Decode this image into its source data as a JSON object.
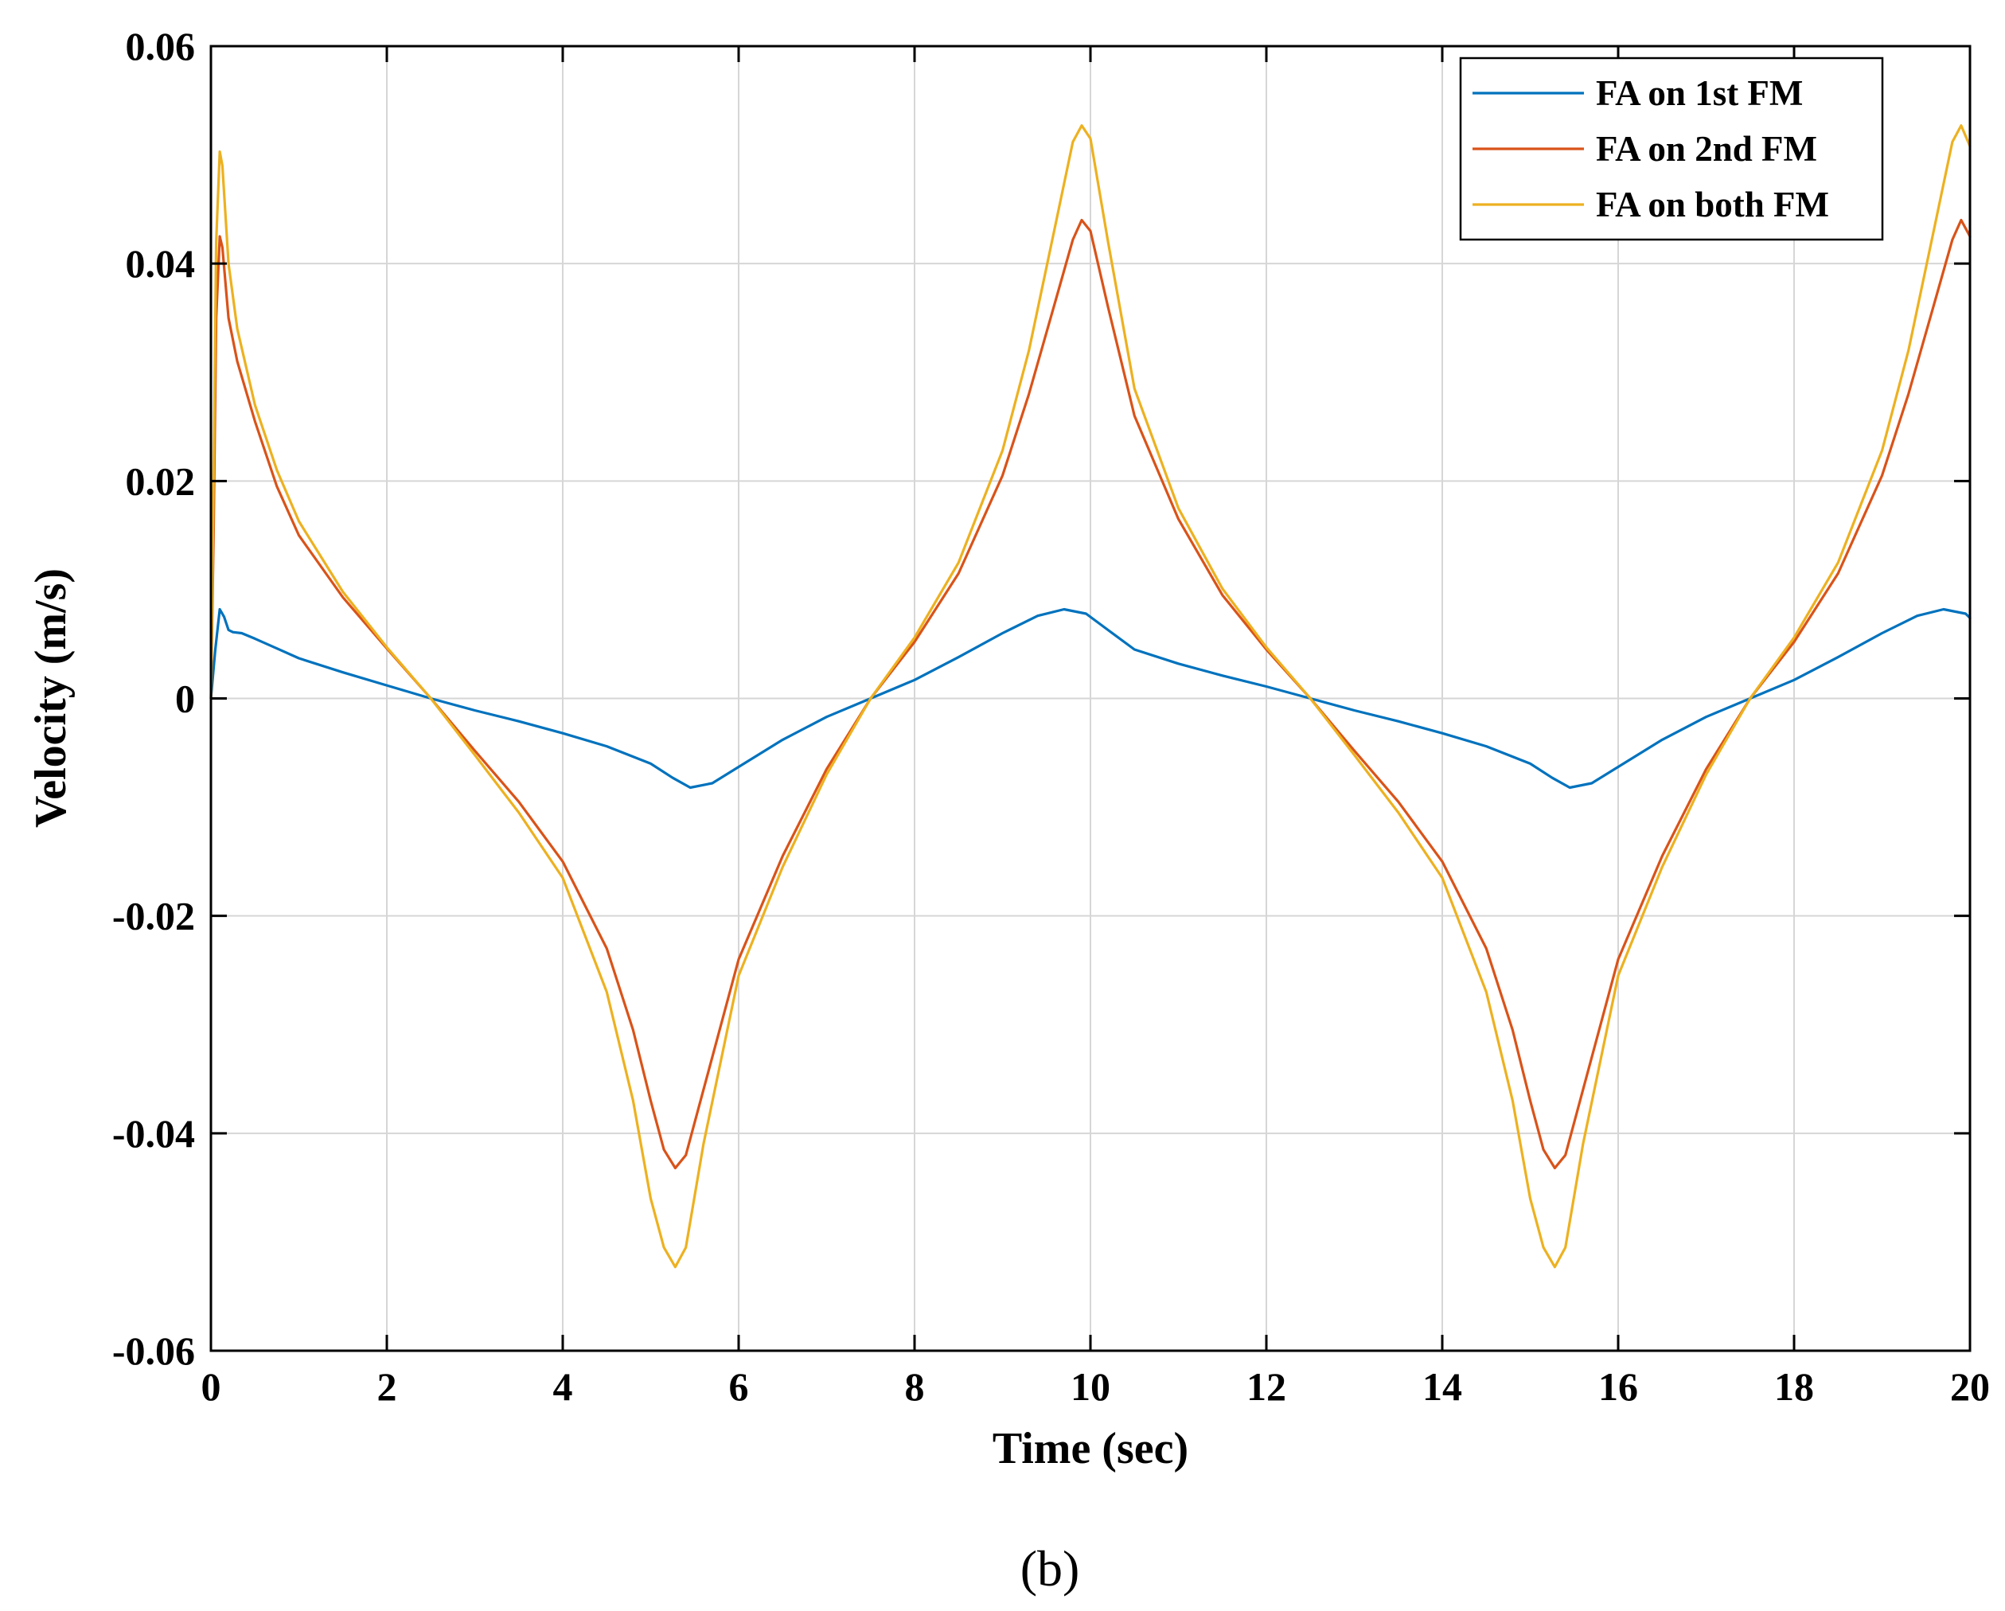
{
  "chart_data": {
    "type": "line",
    "title": "",
    "xlabel": "Time (sec)",
    "ylabel": "Velocity (m/s)",
    "caption": "(b)",
    "xlim": [
      0,
      20
    ],
    "ylim": [
      -0.06,
      0.06
    ],
    "xticks": [
      0,
      2,
      4,
      6,
      8,
      10,
      12,
      14,
      16,
      18,
      20
    ],
    "yticks": [
      -0.06,
      -0.04,
      -0.02,
      0,
      0.02,
      0.04,
      0.06
    ],
    "xtick_labels": [
      "0",
      "2",
      "4",
      "6",
      "8",
      "10",
      "12",
      "14",
      "16",
      "18",
      "20"
    ],
    "ytick_labels": [
      "-0.06",
      "-0.04",
      "-0.02",
      "0",
      "0.02",
      "0.04",
      "0.06"
    ],
    "grid": true,
    "legend_position": "top-right",
    "series": [
      {
        "name": "FA on 1st FM",
        "color": "#0072BD",
        "x": [
          0,
          0.05,
          0.1,
          0.15,
          0.2,
          0.25,
          0.35,
          0.5,
          0.75,
          1,
          1.5,
          2,
          2.5,
          3,
          3.5,
          4,
          4.5,
          5,
          5.25,
          5.45,
          5.7,
          6,
          6.5,
          7,
          7.5,
          8,
          8.5,
          9,
          9.4,
          9.7,
          9.95,
          10.2,
          10.5,
          11,
          11.5,
          12,
          12.5,
          13,
          13.5,
          14,
          14.5,
          15,
          15.25,
          15.45,
          15.7,
          16,
          16.5,
          17,
          17.5,
          18,
          18.5,
          19,
          19.4,
          19.7,
          19.95,
          20
        ],
        "y": [
          0,
          0.0045,
          0.0082,
          0.0075,
          0.0063,
          0.0061,
          0.006,
          0.0055,
          0.0046,
          0.0037,
          0.0024,
          0.0012,
          0.0,
          -0.0011,
          -0.0021,
          -0.0032,
          -0.0044,
          -0.006,
          -0.0073,
          -0.0082,
          -0.0078,
          -0.0063,
          -0.0038,
          -0.0017,
          0.0,
          0.0017,
          0.0038,
          0.006,
          0.0076,
          0.0082,
          0.0078,
          0.0063,
          0.0045,
          0.0032,
          0.0021,
          0.0011,
          0.0,
          -0.0011,
          -0.0021,
          -0.0032,
          -0.0044,
          -0.006,
          -0.0073,
          -0.0082,
          -0.0078,
          -0.0063,
          -0.0038,
          -0.0017,
          0.0,
          0.0017,
          0.0038,
          0.006,
          0.0076,
          0.0082,
          0.0078,
          0.0074
        ]
      },
      {
        "name": "FA on 2nd FM",
        "color": "#D95319",
        "x": [
          0,
          0.03,
          0.06,
          0.1,
          0.13,
          0.2,
          0.3,
          0.5,
          0.75,
          1,
          1.5,
          2,
          2.5,
          3,
          3.5,
          4,
          4.5,
          4.8,
          5.0,
          5.15,
          5.28,
          5.4,
          5.6,
          6,
          6.5,
          7,
          7.5,
          8,
          8.5,
          9,
          9.3,
          9.6,
          9.8,
          9.9,
          10.0,
          10.2,
          10.5,
          11,
          11.5,
          12,
          12.5,
          13,
          13.5,
          14,
          14.5,
          14.8,
          15.0,
          15.15,
          15.28,
          15.4,
          15.6,
          16,
          16.5,
          17,
          17.5,
          18,
          18.5,
          19,
          19.3,
          19.6,
          19.8,
          19.9,
          20
        ],
        "y": [
          0,
          0.015,
          0.035,
          0.0425,
          0.0415,
          0.035,
          0.031,
          0.0255,
          0.0195,
          0.015,
          0.0093,
          0.0046,
          0.0,
          -0.0048,
          -0.0095,
          -0.015,
          -0.023,
          -0.0305,
          -0.037,
          -0.0415,
          -0.0432,
          -0.042,
          -0.036,
          -0.024,
          -0.0145,
          -0.0065,
          0.0,
          0.0052,
          0.0115,
          0.0205,
          0.028,
          0.0365,
          0.0422,
          0.044,
          0.043,
          0.036,
          0.026,
          0.0165,
          0.0095,
          0.0045,
          0.0,
          -0.0048,
          -0.0095,
          -0.015,
          -0.023,
          -0.0305,
          -0.037,
          -0.0415,
          -0.0432,
          -0.042,
          -0.036,
          -0.024,
          -0.0145,
          -0.0065,
          0.0,
          0.0052,
          0.0115,
          0.0205,
          0.028,
          0.0365,
          0.0422,
          0.044,
          0.0425
        ]
      },
      {
        "name": "FA on both FM",
        "color": "#EDB120",
        "x": [
          0,
          0.03,
          0.06,
          0.1,
          0.13,
          0.2,
          0.3,
          0.5,
          0.75,
          1,
          1.5,
          2,
          2.5,
          3,
          3.5,
          4,
          4.5,
          4.8,
          5.0,
          5.15,
          5.28,
          5.4,
          5.6,
          6,
          6.5,
          7,
          7.5,
          8,
          8.5,
          9,
          9.3,
          9.6,
          9.8,
          9.9,
          10.0,
          10.2,
          10.5,
          11,
          11.5,
          12,
          12.5,
          13,
          13.5,
          14,
          14.5,
          14.8,
          15.0,
          15.15,
          15.28,
          15.4,
          15.6,
          16,
          16.5,
          17,
          17.5,
          18,
          18.5,
          19,
          19.3,
          19.6,
          19.8,
          19.9,
          20
        ],
        "y": [
          0,
          0.02,
          0.042,
          0.0503,
          0.049,
          0.04,
          0.034,
          0.027,
          0.021,
          0.0163,
          0.0098,
          0.0047,
          0.0,
          -0.0052,
          -0.0105,
          -0.0165,
          -0.027,
          -0.037,
          -0.046,
          -0.0505,
          -0.0523,
          -0.0505,
          -0.041,
          -0.0255,
          -0.0155,
          -0.007,
          0.0,
          0.0056,
          0.0125,
          0.0228,
          0.032,
          0.0435,
          0.0512,
          0.0527,
          0.0515,
          0.042,
          0.0285,
          0.0175,
          0.0101,
          0.0047,
          0.0,
          -0.0052,
          -0.0105,
          -0.0165,
          -0.027,
          -0.037,
          -0.046,
          -0.0505,
          -0.0523,
          -0.0505,
          -0.041,
          -0.0255,
          -0.0155,
          -0.007,
          0.0,
          0.0056,
          0.0125,
          0.0228,
          0.032,
          0.0435,
          0.0512,
          0.0527,
          0.0508
        ]
      }
    ]
  }
}
